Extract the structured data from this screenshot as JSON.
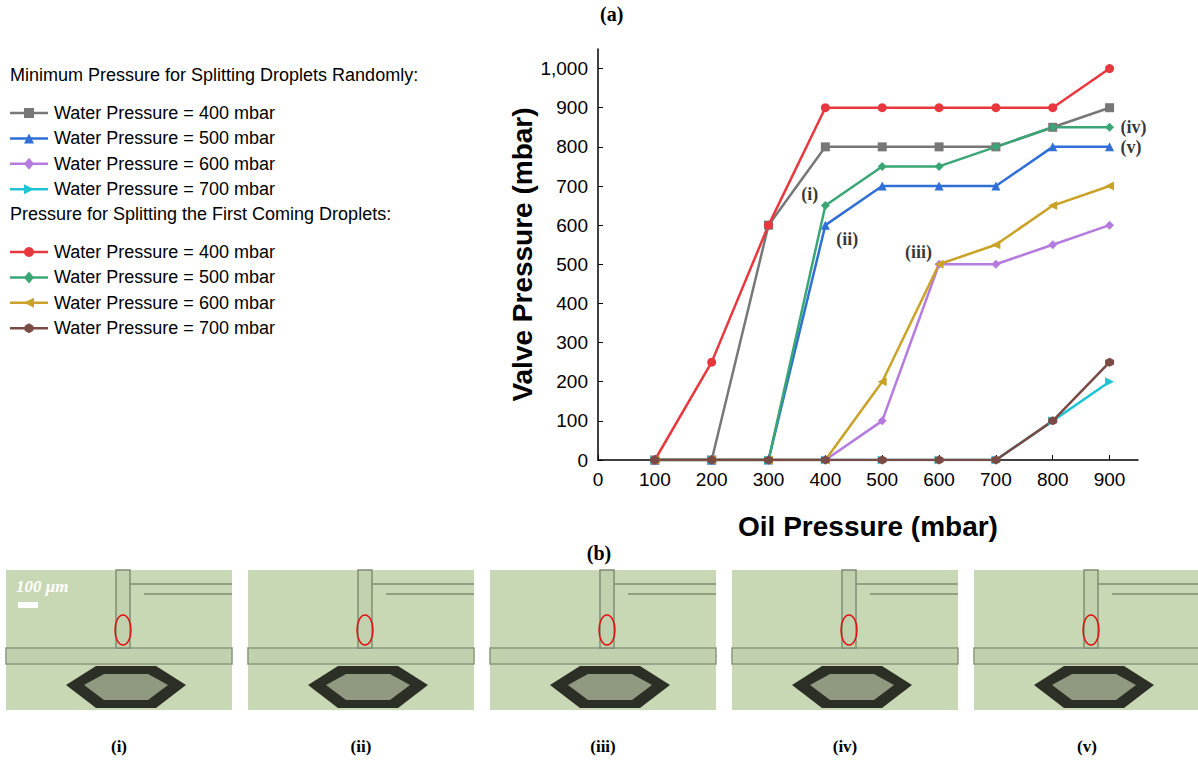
{
  "chart_data": {
    "type": "line",
    "panel_label": "(a)",
    "x_label": "Oil Pressure (mbar)",
    "y_label": "Valve Pressure (mbar)",
    "x": [
      100,
      200,
      300,
      400,
      500,
      600,
      700,
      800,
      900
    ],
    "xlim": [
      0,
      950
    ],
    "xticks": [
      0,
      100,
      200,
      300,
      400,
      500,
      600,
      700,
      800,
      900
    ],
    "ylim": [
      0,
      1050
    ],
    "yticks": [
      0,
      100,
      200,
      300,
      400,
      500,
      600,
      700,
      800,
      900,
      1000
    ],
    "grid": false,
    "legend": "left",
    "legend_titles": [
      "Minimum Pressure for Splitting Droplets Randomly:",
      "Pressure for Splitting the First Coming Droplets:"
    ],
    "series": [
      {
        "name": "Water Pressure = 400 mbar",
        "group": 0,
        "color": "#777777",
        "marker": "square",
        "values": [
          0,
          0,
          600,
          800,
          800,
          800,
          800,
          850,
          900
        ]
      },
      {
        "name": "Water Pressure = 500 mbar",
        "group": 0,
        "color": "#2f6fd6",
        "marker": "triangle",
        "values": [
          0,
          0,
          0,
          600,
          700,
          700,
          700,
          800,
          800
        ]
      },
      {
        "name": "Water Pressure = 600 mbar",
        "group": 0,
        "color": "#b57be0",
        "marker": "diamond",
        "values": [
          0,
          0,
          0,
          0,
          100,
          500,
          500,
          550,
          600
        ]
      },
      {
        "name": "Water Pressure = 700 mbar",
        "group": 0,
        "color": "#20c4d4",
        "marker": "triangle-right",
        "values": [
          0,
          0,
          0,
          0,
          0,
          0,
          0,
          100,
          200
        ]
      },
      {
        "name": "Water Pressure = 400 mbar",
        "group": 1,
        "color": "#e8383d",
        "marker": "circle",
        "values": [
          0,
          250,
          600,
          900,
          900,
          900,
          900,
          900,
          1000
        ]
      },
      {
        "name": "Water Pressure = 500 mbar",
        "group": 1,
        "color": "#3aa676",
        "marker": "diamond",
        "values": [
          0,
          0,
          0,
          650,
          750,
          750,
          800,
          850,
          850
        ]
      },
      {
        "name": "Water Pressure = 600 mbar",
        "group": 1,
        "color": "#c9a227",
        "marker": "triangle-left",
        "values": [
          0,
          0,
          0,
          0,
          200,
          500,
          550,
          650,
          700
        ]
      },
      {
        "name": "Water Pressure = 700 mbar",
        "group": 1,
        "color": "#7a4a45",
        "marker": "hexagon",
        "values": [
          0,
          0,
          0,
          0,
          0,
          0,
          0,
          100,
          250
        ]
      }
    ],
    "annotations": [
      {
        "text": "(i)",
        "x": 400,
        "y": 650
      },
      {
        "text": "(ii)",
        "x": 400,
        "y": 600
      },
      {
        "text": "(iii)",
        "x": 600,
        "y": 500
      },
      {
        "text": "(iv)",
        "x": 900,
        "y": 850
      },
      {
        "text": "(v)",
        "x": 900,
        "y": 800
      }
    ]
  },
  "images": {
    "label": "(b)",
    "scale_bar": "100 μm",
    "panels": [
      {
        "label": "(i)"
      },
      {
        "label": "(ii)"
      },
      {
        "label": "(iii)"
      },
      {
        "label": "(iv)"
      },
      {
        "label": "(v)"
      }
    ]
  }
}
